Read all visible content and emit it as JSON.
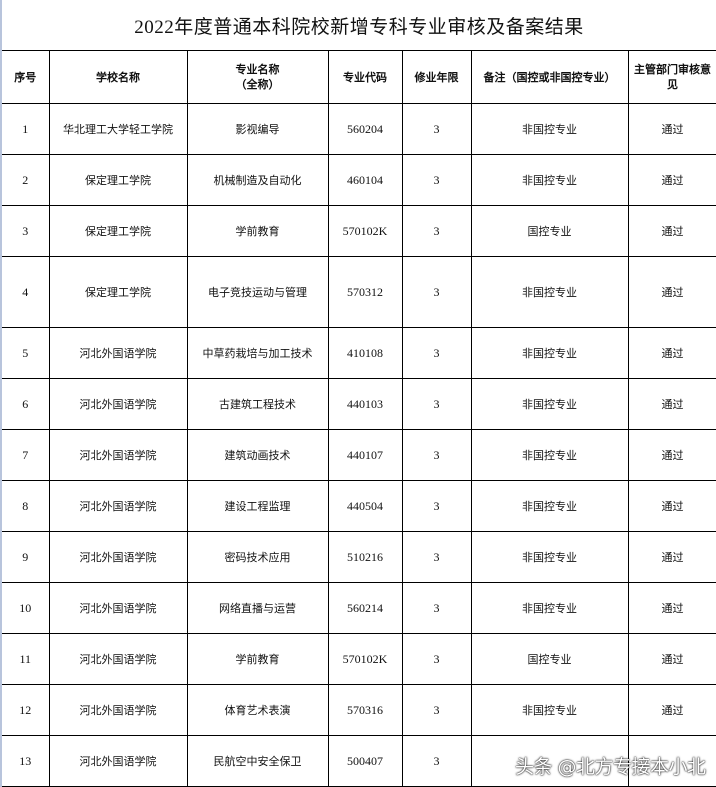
{
  "title": "2022年度普通本科院校新增专科专业审核及备案结果",
  "headers": [
    "序号",
    "学校名称",
    "专业名称\n（全称）",
    "专业代码",
    "修业年限",
    "备注（国控或非国控专业）",
    "主管部门审核意见"
  ],
  "rows": [
    {
      "no": "1",
      "school": "华北理工大学轻工学院",
      "major": "影视编导",
      "code": "560204",
      "years": "3",
      "remark": "非国控专业",
      "opinion": "通过"
    },
    {
      "no": "2",
      "school": "保定理工学院",
      "major": "机械制造及自动化",
      "code": "460104",
      "years": "3",
      "remark": "非国控专业",
      "opinion": "通过"
    },
    {
      "no": "3",
      "school": "保定理工学院",
      "major": "学前教育",
      "code": "570102K",
      "years": "3",
      "remark": "国控专业",
      "opinion": "通过"
    },
    {
      "no": "4",
      "school": "保定理工学院",
      "major": "电子竞技运动与管理",
      "code": "570312",
      "years": "3",
      "remark": "非国控专业",
      "opinion": "通过"
    },
    {
      "no": "5",
      "school": "河北外国语学院",
      "major": "中草药栽培与加工技术",
      "code": "410108",
      "years": "3",
      "remark": "非国控专业",
      "opinion": "通过"
    },
    {
      "no": "6",
      "school": "河北外国语学院",
      "major": "古建筑工程技术",
      "code": "440103",
      "years": "3",
      "remark": "非国控专业",
      "opinion": "通过"
    },
    {
      "no": "7",
      "school": "河北外国语学院",
      "major": "建筑动画技术",
      "code": "440107",
      "years": "3",
      "remark": "非国控专业",
      "opinion": "通过"
    },
    {
      "no": "8",
      "school": "河北外国语学院",
      "major": "建设工程监理",
      "code": "440504",
      "years": "3",
      "remark": "非国控专业",
      "opinion": "通过"
    },
    {
      "no": "9",
      "school": "河北外国语学院",
      "major": "密码技术应用",
      "code": "510216",
      "years": "3",
      "remark": "非国控专业",
      "opinion": "通过"
    },
    {
      "no": "10",
      "school": "河北外国语学院",
      "major": "网络直播与运营",
      "code": "560214",
      "years": "3",
      "remark": "非国控专业",
      "opinion": "通过"
    },
    {
      "no": "11",
      "school": "河北外国语学院",
      "major": "学前教育",
      "code": "570102K",
      "years": "3",
      "remark": "国控专业",
      "opinion": "通过"
    },
    {
      "no": "12",
      "school": "河北外国语学院",
      "major": "体育艺术表演",
      "code": "570316",
      "years": "3",
      "remark": "非国控专业",
      "opinion": "通过"
    },
    {
      "no": "13",
      "school": "河北外国语学院",
      "major": "民航空中安全保卫",
      "code": "500407",
      "years": "3",
      "remark": "",
      "opinion": ""
    }
  ],
  "watermark": "头条 @北方专接本小北"
}
